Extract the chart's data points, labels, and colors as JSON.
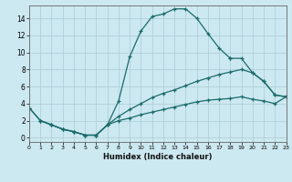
{
  "xlabel": "Humidex (Indice chaleur)",
  "bg_color": "#cce8f0",
  "grid_color": "#aaccd8",
  "line_color": "#1a6b6b",
  "xlim": [
    0,
    23
  ],
  "ylim": [
    -0.5,
    15.5
  ],
  "xticks": [
    0,
    1,
    2,
    3,
    4,
    5,
    6,
    7,
    8,
    9,
    10,
    11,
    12,
    13,
    14,
    15,
    16,
    17,
    18,
    19,
    20,
    21,
    22,
    23
  ],
  "yticks": [
    0,
    2,
    4,
    6,
    8,
    10,
    12,
    14
  ],
  "series": [
    {
      "x": [
        0,
        1,
        2,
        3,
        4,
        5,
        6,
        7,
        8,
        9,
        10,
        11,
        12,
        13,
        14,
        15,
        16,
        17,
        18
      ],
      "y": [
        3.5,
        2.0,
        1.5,
        1.0,
        0.7,
        0.3,
        0.3,
        1.5,
        4.3,
        9.5,
        12.5,
        14.2,
        14.5,
        15.1,
        15.1,
        14.0,
        12.2,
        10.5,
        9.3
      ]
    },
    {
      "x": [
        18,
        19,
        20,
        21,
        22,
        23
      ],
      "y": [
        9.3,
        9.3,
        7.6,
        6.6,
        5.0,
        4.8
      ]
    },
    {
      "x": [
        0,
        1,
        2,
        3,
        4,
        5,
        6,
        7,
        8,
        9,
        10,
        11,
        12,
        13,
        14,
        15,
        16,
        17,
        18,
        19,
        20,
        21,
        22,
        23
      ],
      "y": [
        3.5,
        2.0,
        1.5,
        1.0,
        0.7,
        0.3,
        0.3,
        1.5,
        2.5,
        3.3,
        4.0,
        4.7,
        5.2,
        5.6,
        6.1,
        6.6,
        7.0,
        7.4,
        7.7,
        8.0,
        7.6,
        6.6,
        5.0,
        4.8
      ]
    },
    {
      "x": [
        1,
        2,
        3,
        4,
        5,
        6,
        7,
        8,
        9,
        10,
        11,
        12,
        13,
        14,
        15,
        16,
        17,
        18,
        19,
        20,
        21,
        22,
        23
      ],
      "y": [
        2.0,
        1.5,
        1.0,
        0.7,
        0.3,
        0.3,
        1.5,
        2.0,
        2.3,
        2.7,
        3.0,
        3.3,
        3.6,
        3.9,
        4.2,
        4.4,
        4.5,
        4.6,
        4.8,
        4.5,
        4.3,
        4.0,
        4.8
      ]
    }
  ]
}
